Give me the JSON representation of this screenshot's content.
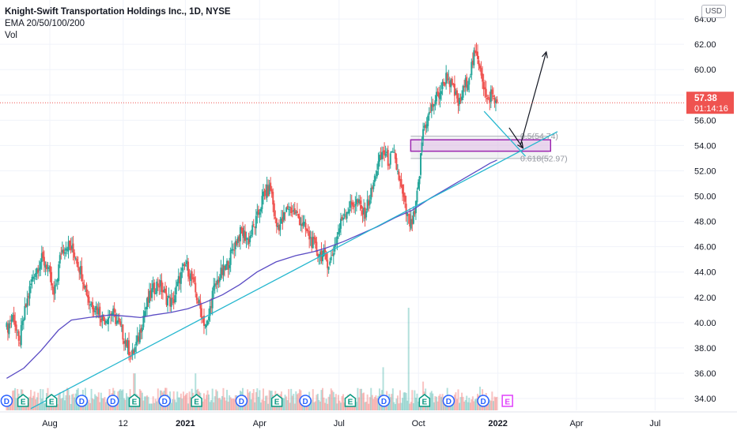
{
  "legend": {
    "title": "Knight-Swift Transportation Holdings Inc., 1D, NYSE",
    "indicator": "EMA 20/50/100/200",
    "volume": "Vol"
  },
  "currency": "USD",
  "price_label": {
    "price": "57.38",
    "countdown": "01:14:16"
  },
  "colors": {
    "up": "#26a69a",
    "down": "#ef5350",
    "ema200": "#5b4cc4",
    "trendline": "#26b7cf",
    "zone_border": "#9c27b0",
    "zone_fill": "#e1bee7",
    "price_label": "#ef5350",
    "fib": "#b2b5be",
    "event_dividend": "#2962ff",
    "event_earnings": "#089981",
    "event_earnings_upcoming": "#e040fb"
  },
  "chart_data": {
    "type": "candlestick",
    "ylim": [
      33.2,
      64.6
    ],
    "y_ticks": [
      "34.00",
      "36.00",
      "38.00",
      "40.00",
      "42.00",
      "44.00",
      "46.00",
      "48.00",
      "50.00",
      "52.00",
      "54.00",
      "56.00",
      "58.00",
      "60.00",
      "62.00",
      "64.00"
    ],
    "x_ticks": [
      "Aug",
      "12",
      "2021",
      "Apr",
      "Jul",
      "Oct",
      "2022",
      "Apr",
      "Jul"
    ],
    "x_tick_days": [
      0,
      85,
      157,
      243,
      335,
      427,
      519,
      610,
      701
    ],
    "last_day": 518,
    "price_path": [
      [
        -50,
        39.5
      ],
      [
        -42,
        40.6
      ],
      [
        -36,
        38.2
      ],
      [
        -28,
        41.2
      ],
      [
        -20,
        43.6
      ],
      [
        -10,
        45.0
      ],
      [
        -3,
        44.5
      ],
      [
        5,
        42.0
      ],
      [
        13,
        45.6
      ],
      [
        20,
        46.2
      ],
      [
        30,
        45.3
      ],
      [
        38,
        43.6
      ],
      [
        46,
        41.6
      ],
      [
        54,
        41.2
      ],
      [
        62,
        40.2
      ],
      [
        72,
        40.8
      ],
      [
        80,
        39.8
      ],
      [
        88,
        38.5
      ],
      [
        95,
        37.3
      ],
      [
        102,
        38.6
      ],
      [
        110,
        41.0
      ],
      [
        118,
        42.4
      ],
      [
        126,
        43.2
      ],
      [
        134,
        42.0
      ],
      [
        142,
        41.5
      ],
      [
        150,
        43.5
      ],
      [
        158,
        44.6
      ],
      [
        164,
        43.5
      ],
      [
        172,
        41.6
      ],
      [
        178,
        40.2
      ],
      [
        182,
        39.5
      ],
      [
        188,
        42.2
      ],
      [
        196,
        43.6
      ],
      [
        206,
        44.6
      ],
      [
        214,
        46.2
      ],
      [
        222,
        47.2
      ],
      [
        230,
        46.5
      ],
      [
        240,
        48.2
      ],
      [
        248,
        50.2
      ],
      [
        256,
        50.6
      ],
      [
        262,
        47.6
      ],
      [
        268,
        47.8
      ],
      [
        276,
        49.2
      ],
      [
        286,
        48.5
      ],
      [
        294,
        47.6
      ],
      [
        302,
        46.6
      ],
      [
        310,
        45.6
      ],
      [
        318,
        45.2
      ],
      [
        324,
        44.6
      ],
      [
        332,
        46.6
      ],
      [
        340,
        48.6
      ],
      [
        348,
        49.2
      ],
      [
        356,
        49.6
      ],
      [
        364,
        48.5
      ],
      [
        372,
        50.2
      ],
      [
        380,
        52.4
      ],
      [
        386,
        53.6
      ],
      [
        392,
        52.8
      ],
      [
        398,
        53.2
      ],
      [
        404,
        51.6
      ],
      [
        408,
        50.2
      ],
      [
        413,
        48.6
      ],
      [
        418,
        47.6
      ],
      [
        423,
        48.6
      ],
      [
        428,
        51.6
      ],
      [
        432,
        55.2
      ],
      [
        438,
        56.2
      ],
      [
        446,
        57.6
      ],
      [
        454,
        58.5
      ],
      [
        460,
        59.6
      ],
      [
        468,
        58.2
      ],
      [
        474,
        57.2
      ],
      [
        480,
        58.6
      ],
      [
        486,
        59.6
      ],
      [
        492,
        61.2
      ],
      [
        498,
        60.5
      ],
      [
        503,
        58.6
      ],
      [
        507,
        57.2
      ],
      [
        511,
        58.2
      ],
      [
        515,
        57.5
      ],
      [
        518,
        57.38
      ]
    ],
    "ema200_path": [
      [
        -50,
        35.6
      ],
      [
        -30,
        36.4
      ],
      [
        -10,
        37.8
      ],
      [
        10,
        39.4
      ],
      [
        25,
        40.2
      ],
      [
        45,
        40.4
      ],
      [
        70,
        40.6
      ],
      [
        90,
        40.5
      ],
      [
        105,
        40.4
      ],
      [
        120,
        40.6
      ],
      [
        140,
        40.8
      ],
      [
        160,
        41.1
      ],
      [
        180,
        41.6
      ],
      [
        200,
        42.2
      ],
      [
        220,
        43.0
      ],
      [
        240,
        44.0
      ],
      [
        262,
        44.8
      ],
      [
        285,
        45.3
      ],
      [
        305,
        45.6
      ],
      [
        320,
        45.9
      ],
      [
        340,
        46.4
      ],
      [
        360,
        47.0
      ],
      [
        380,
        47.6
      ],
      [
        400,
        48.3
      ],
      [
        420,
        48.9
      ],
      [
        440,
        49.8
      ],
      [
        460,
        50.6
      ],
      [
        480,
        51.4
      ],
      [
        500,
        52.2
      ],
      [
        510,
        52.6
      ],
      [
        518,
        52.85
      ]
    ],
    "ema200_end_day": 518,
    "volume_max": 10,
    "volume_spikes": [
      [
        98,
        3.6
      ],
      [
        169,
        3.6
      ],
      [
        386,
        4.2
      ],
      [
        416,
        10.0
      ],
      [
        432,
        2.8
      ],
      [
        498,
        2.3
      ]
    ],
    "trendline": [
      [
        -22,
        33.2
      ],
      [
        588,
        55.1
      ]
    ],
    "fib": {
      "levels": [
        {
          "value": 54.74,
          "label": "0.5(54.74)"
        },
        {
          "value": 52.97,
          "label": "0.618(52.97)"
        }
      ],
      "start_day": 418,
      "end_day": 578
    },
    "zone": {
      "start_day": 418,
      "end_day": 580,
      "top": 54.45,
      "bottom": 53.55
    },
    "channel_line": [
      [
        503,
        56.7
      ],
      [
        551,
        53.15
      ]
    ],
    "arrows": [
      {
        "from": [
          532,
          55.4
        ],
        "to": [
          548,
          53.8
        ]
      },
      {
        "from": [
          545,
          54.0
        ],
        "to": [
          575,
          61.4
        ]
      }
    ],
    "events": [
      {
        "day": -50,
        "type": "D"
      },
      {
        "day": -31,
        "type": "E"
      },
      {
        "day": 2,
        "type": "E"
      },
      {
        "day": 37,
        "type": "D"
      },
      {
        "day": 73,
        "type": "D"
      },
      {
        "day": 98,
        "type": "E"
      },
      {
        "day": 133,
        "type": "D"
      },
      {
        "day": 170,
        "type": "E"
      },
      {
        "day": 222,
        "type": "D"
      },
      {
        "day": 263,
        "type": "E"
      },
      {
        "day": 296,
        "type": "D"
      },
      {
        "day": 348,
        "type": "E"
      },
      {
        "day": 387,
        "type": "D"
      },
      {
        "day": 434,
        "type": "E"
      },
      {
        "day": 462,
        "type": "D"
      },
      {
        "day": 502,
        "type": "D"
      },
      {
        "day": 530,
        "type": "E",
        "upcoming": true
      }
    ]
  }
}
